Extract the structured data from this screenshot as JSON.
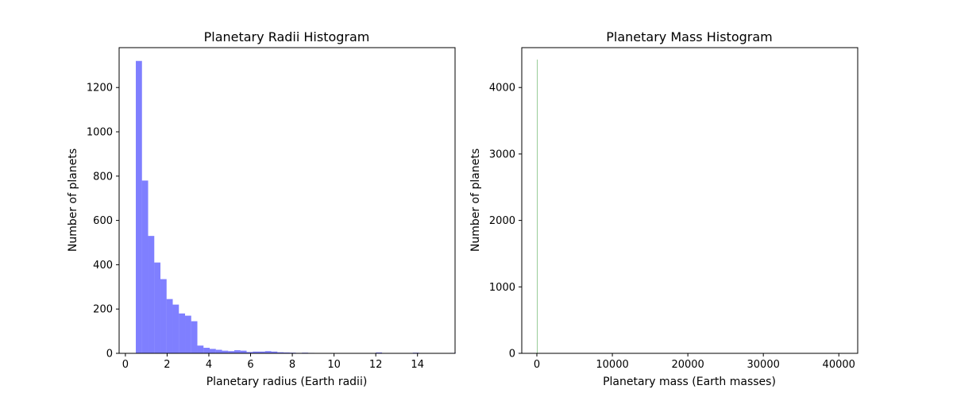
{
  "chart_data": [
    {
      "type": "bar",
      "title": "Planetary Radii Histogram",
      "xlabel": "Planetary radius (Earth radii)",
      "ylabel": "Number of planets",
      "xlim": [
        -0.3,
        15.8
      ],
      "ylim": [
        0,
        1380
      ],
      "xticks": [
        0,
        2,
        4,
        6,
        8,
        10,
        12,
        14
      ],
      "yticks": [
        0,
        200,
        400,
        600,
        800,
        1000,
        1200
      ],
      "color": "#0000ff",
      "alpha": 0.5,
      "bin_start": 0.5,
      "bin_width": 0.295,
      "counts": [
        1320,
        780,
        530,
        410,
        335,
        245,
        220,
        180,
        170,
        145,
        35,
        25,
        20,
        16,
        12,
        10,
        14,
        12,
        6,
        8,
        8,
        10,
        8,
        5,
        4,
        3,
        2,
        3,
        2,
        1,
        1,
        1,
        0,
        0,
        0,
        0,
        0,
        0,
        1,
        4,
        0,
        0,
        0,
        0,
        1,
        3,
        0,
        0,
        0,
        0,
        0,
        2,
        0,
        0,
        0,
        0,
        0,
        0,
        0,
        0,
        0,
        0,
        1,
        1,
        0,
        0,
        0,
        0,
        0,
        0,
        0,
        0,
        0,
        0,
        0,
        0,
        0,
        0,
        0,
        0
      ]
    },
    {
      "type": "bar",
      "title": "Planetary Mass Histogram",
      "xlabel": "Planetary mass (Earth masses)",
      "ylabel": "Number of planets",
      "xlim": [
        -2000,
        42500
      ],
      "ylim": [
        0,
        4600
      ],
      "xticks": [
        0,
        10000,
        20000,
        30000,
        40000
      ],
      "yticks": [
        0,
        1000,
        2000,
        3000,
        4000
      ],
      "color": "#008000",
      "alpha": 0.5,
      "bars": [
        {
          "x0": 0,
          "x1": 60,
          "count": 4420
        }
      ]
    }
  ]
}
